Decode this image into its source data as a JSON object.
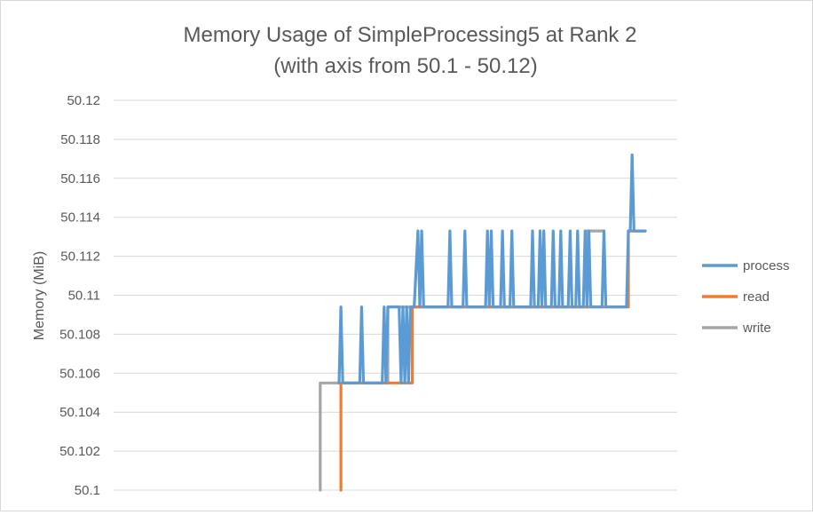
{
  "chart_data": {
    "type": "line",
    "title": "Memory Usage of SimpleProcessing5 at Rank 2",
    "subtitle": "(with axis from 50.1 - 50.12)",
    "xlabel": "",
    "ylabel": "Memory (MiB)",
    "ylim": [
      50.1,
      50.12
    ],
    "yticks": [
      "50.1",
      "50.102",
      "50.104",
      "50.106",
      "50.108",
      "50.11",
      "50.112",
      "50.114",
      "50.116",
      "50.118",
      "50.12"
    ],
    "grid": true,
    "legend_position": "right",
    "x_range": [
      0,
      300
    ],
    "series": [
      {
        "name": "write",
        "color": "#a5a5a5",
        "points": [
          [
            110,
            50.1
          ],
          [
            110,
            50.1055
          ],
          [
            146,
            50.1055
          ],
          [
            146,
            50.1094
          ],
          [
            188,
            50.1094
          ],
          [
            188,
            50.1094
          ],
          [
            195,
            50.1094
          ],
          [
            195,
            50.1094
          ],
          [
            223,
            50.1094
          ],
          [
            223,
            50.1094
          ],
          [
            236,
            50.1094
          ],
          [
            236,
            50.1094
          ],
          [
            252,
            50.1094
          ],
          [
            252,
            50.1133
          ],
          [
            261,
            50.1133
          ]
        ]
      },
      {
        "name": "read",
        "color": "#ed7d31",
        "points": [
          [
            121,
            50.1
          ],
          [
            121,
            50.1055
          ],
          [
            159,
            50.1055
          ],
          [
            159,
            50.1094
          ],
          [
            251,
            50.1094
          ],
          [
            251,
            50.1094
          ],
          [
            265,
            50.1094
          ],
          [
            265,
            50.1094
          ],
          [
            274,
            50.1094
          ],
          [
            274,
            50.1133
          ],
          [
            283,
            50.1133
          ]
        ]
      },
      {
        "name": "process",
        "color": "#5b9bd5",
        "points": [
          [
            120,
            50.1055
          ],
          [
            121,
            50.1094
          ],
          [
            122,
            50.1055
          ],
          [
            131,
            50.1055
          ],
          [
            132,
            50.1094
          ],
          [
            133,
            50.1055
          ],
          [
            143,
            50.1055
          ],
          [
            144,
            50.1094
          ],
          [
            145,
            50.1055
          ],
          [
            146,
            50.1094
          ],
          [
            152,
            50.1094
          ],
          [
            153,
            50.1055
          ],
          [
            154,
            50.1094
          ],
          [
            155,
            50.1055
          ],
          [
            156,
            50.1094
          ],
          [
            157,
            50.1055
          ],
          [
            158,
            50.1094
          ],
          [
            160,
            50.1094
          ],
          [
            162,
            50.1133
          ],
          [
            163,
            50.1094
          ],
          [
            164,
            50.1133
          ],
          [
            165,
            50.1094
          ],
          [
            178,
            50.1094
          ],
          [
            179,
            50.1133
          ],
          [
            180,
            50.1094
          ],
          [
            186,
            50.1094
          ],
          [
            187,
            50.1133
          ],
          [
            188,
            50.1094
          ],
          [
            198,
            50.1094
          ],
          [
            199,
            50.1133
          ],
          [
            200,
            50.1094
          ],
          [
            201,
            50.1133
          ],
          [
            202,
            50.1094
          ],
          [
            206,
            50.1094
          ],
          [
            207,
            50.1133
          ],
          [
            208,
            50.1094
          ],
          [
            211,
            50.1094
          ],
          [
            212,
            50.1133
          ],
          [
            213,
            50.1094
          ],
          [
            222,
            50.1094
          ],
          [
            223,
            50.1133
          ],
          [
            224,
            50.1094
          ],
          [
            226,
            50.1094
          ],
          [
            227,
            50.1133
          ],
          [
            228,
            50.1094
          ],
          [
            229,
            50.1133
          ],
          [
            230,
            50.1094
          ],
          [
            233,
            50.1094
          ],
          [
            234,
            50.1133
          ],
          [
            235,
            50.1094
          ],
          [
            237,
            50.1094
          ],
          [
            238,
            50.1133
          ],
          [
            239,
            50.1094
          ],
          [
            242,
            50.1094
          ],
          [
            243,
            50.1133
          ],
          [
            244,
            50.1094
          ],
          [
            246,
            50.1094
          ],
          [
            247,
            50.1133
          ],
          [
            248,
            50.1094
          ],
          [
            250,
            50.1094
          ],
          [
            251,
            50.1133
          ],
          [
            252,
            50.1094
          ],
          [
            253,
            50.1133
          ],
          [
            254,
            50.1094
          ],
          [
            260,
            50.1094
          ],
          [
            261,
            50.1133
          ],
          [
            262,
            50.1094
          ],
          [
            273,
            50.1094
          ],
          [
            274,
            50.1133
          ],
          [
            275,
            50.1133
          ],
          [
            276,
            50.1172
          ],
          [
            277,
            50.1133
          ],
          [
            283,
            50.1133
          ]
        ]
      }
    ],
    "legend": [
      "process",
      "read",
      "write"
    ]
  }
}
